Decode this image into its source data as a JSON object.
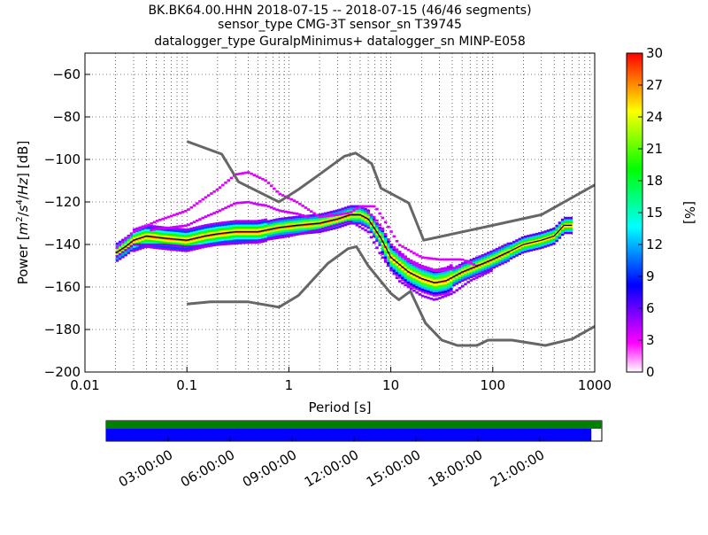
{
  "chart_data": {
    "type": "heatmap",
    "title_lines": [
      "BK.BK64.00.HHN   2018-07-15 -- 2018-07-15  (46/46 segments)",
      "sensor_type CMG-3T sensor_sn T39745",
      "datalogger_type GuralpMinimus+ datalogger_sn MINP-E058"
    ],
    "xlabel": "Period [s]",
    "ylabel_parts": [
      "Power [",
      "m",
      "2",
      "/",
      "s",
      "4",
      "/",
      "Hz",
      "] [dB]"
    ],
    "x_scale": "log",
    "xlim": [
      0.01,
      1000
    ],
    "ylim": [
      -200,
      -50
    ],
    "x_ticks": [
      {
        "value": 0.01,
        "label": "0.01"
      },
      {
        "value": 0.1,
        "label": "0.1"
      },
      {
        "value": 1,
        "label": "1"
      },
      {
        "value": 10,
        "label": "10"
      },
      {
        "value": 100,
        "label": "100"
      },
      {
        "value": 1000,
        "label": "1000"
      }
    ],
    "y_ticks": [
      {
        "value": -60,
        "label": "−60"
      },
      {
        "value": -80,
        "label": "−80"
      },
      {
        "value": -100,
        "label": "−100"
      },
      {
        "value": -120,
        "label": "−120"
      },
      {
        "value": -140,
        "label": "−140"
      },
      {
        "value": -160,
        "label": "−160"
      },
      {
        "value": -180,
        "label": "−180"
      },
      {
        "value": -200,
        "label": "−200"
      }
    ],
    "grid": "dotted",
    "colorbar": {
      "label": "[%]",
      "range": [
        0,
        30
      ],
      "ticks": [
        {
          "value": 0,
          "label": "0"
        },
        {
          "value": 3,
          "label": "3"
        },
        {
          "value": 6,
          "label": "6"
        },
        {
          "value": 9,
          "label": "9"
        },
        {
          "value": 12,
          "label": "12"
        },
        {
          "value": 15,
          "label": "15"
        },
        {
          "value": 18,
          "label": "18"
        },
        {
          "value": 21,
          "label": "21"
        },
        {
          "value": 24,
          "label": "24"
        },
        {
          "value": 27,
          "label": "27"
        },
        {
          "value": 30,
          "label": "30"
        }
      ],
      "colors": [
        "#ffffff",
        "#ff00ff",
        "#8000ff",
        "#0000ff",
        "#0080ff",
        "#00ffff",
        "#00ff80",
        "#00ff00",
        "#80ff00",
        "#ffff00",
        "#ff8000",
        "#ff0000"
      ]
    },
    "series": [
      {
        "role": "model-high",
        "color": "#666666",
        "points": [
          [
            0.1,
            -91.5
          ],
          [
            0.22,
            -97.5
          ],
          [
            0.32,
            -110.5
          ],
          [
            0.8,
            -120
          ],
          [
            1.25,
            -114
          ],
          [
            2.0,
            -107
          ],
          [
            3.5,
            -98.5
          ],
          [
            4.5,
            -97
          ],
          [
            6.5,
            -102
          ],
          [
            8.0,
            -113.5
          ],
          [
            15.0,
            -120.5
          ],
          [
            21.0,
            -138
          ],
          [
            100,
            -131
          ],
          [
            300,
            -126
          ],
          [
            1000,
            -112
          ]
        ]
      },
      {
        "role": "model-low",
        "color": "#666666",
        "points": [
          [
            0.1,
            -168
          ],
          [
            0.17,
            -167
          ],
          [
            0.4,
            -167
          ],
          [
            0.8,
            -169.5
          ],
          [
            1.24,
            -164
          ],
          [
            2.4,
            -149
          ],
          [
            3.8,
            -142
          ],
          [
            4.6,
            -141
          ],
          [
            6.0,
            -150
          ],
          [
            10,
            -163
          ],
          [
            12,
            -166
          ],
          [
            15.6,
            -162
          ],
          [
            21.9,
            -177
          ],
          [
            31.6,
            -185
          ],
          [
            45,
            -187.5
          ],
          [
            70,
            -187.5
          ],
          [
            90,
            -185
          ],
          [
            154,
            -185
          ],
          [
            328,
            -187.5
          ],
          [
            600,
            -184.5
          ],
          [
            1000,
            -178.5
          ]
        ]
      },
      {
        "role": "mean",
        "color": "#000000",
        "points": [
          [
            0.02,
            -144
          ],
          [
            0.025,
            -141
          ],
          [
            0.03,
            -138
          ],
          [
            0.04,
            -136
          ],
          [
            0.06,
            -137
          ],
          [
            0.1,
            -138
          ],
          [
            0.15,
            -136
          ],
          [
            0.2,
            -135
          ],
          [
            0.3,
            -134
          ],
          [
            0.5,
            -134
          ],
          [
            0.8,
            -132
          ],
          [
            1.2,
            -131
          ],
          [
            2,
            -130
          ],
          [
            3,
            -128
          ],
          [
            4,
            -126
          ],
          [
            5,
            -126
          ],
          [
            6,
            -128
          ],
          [
            8,
            -137
          ],
          [
            10,
            -146
          ],
          [
            15,
            -153
          ],
          [
            20,
            -156
          ],
          [
            27,
            -158
          ],
          [
            35,
            -157
          ],
          [
            50,
            -153
          ],
          [
            80,
            -149
          ],
          [
            100,
            -147
          ],
          [
            150,
            -143
          ],
          [
            200,
            -140
          ],
          [
            300,
            -138
          ],
          [
            400,
            -136
          ],
          [
            500,
            -131
          ],
          [
            600,
            -131
          ]
        ]
      },
      {
        "role": "envelope-upper",
        "color": "#d000ff",
        "points": [
          [
            0.02,
            -142
          ],
          [
            0.03,
            -134
          ],
          [
            0.05,
            -129
          ],
          [
            0.1,
            -124
          ],
          [
            0.15,
            -118
          ],
          [
            0.2,
            -114
          ],
          [
            0.3,
            -107
          ],
          [
            0.4,
            -106
          ],
          [
            0.6,
            -110
          ],
          [
            0.8,
            -116
          ],
          [
            1.2,
            -120
          ],
          [
            2,
            -127
          ],
          [
            3,
            -126
          ],
          [
            4,
            -125
          ],
          [
            5,
            -122
          ],
          [
            7,
            -122
          ],
          [
            9,
            -130
          ],
          [
            12,
            -140
          ],
          [
            20,
            -146
          ],
          [
            30,
            -147
          ],
          [
            50,
            -147
          ],
          [
            70,
            -150
          ]
        ]
      },
      {
        "role": "envelope-lower",
        "color": "#8a00ff",
        "points": [
          [
            0.02,
            -146
          ],
          [
            0.03,
            -140
          ],
          [
            0.06,
            -140
          ],
          [
            0.1,
            -141
          ],
          [
            0.2,
            -140
          ],
          [
            0.4,
            -139
          ],
          [
            1,
            -136
          ],
          [
            2,
            -133
          ],
          [
            4,
            -129
          ],
          [
            6,
            -134
          ],
          [
            8,
            -145
          ],
          [
            12,
            -157
          ],
          [
            20,
            -164
          ],
          [
            27,
            -166
          ],
          [
            40,
            -163
          ],
          [
            60,
            -157
          ],
          [
            100,
            -152
          ]
        ]
      }
    ]
  },
  "timeline": {
    "bar_top_color": "#008000",
    "bar_bottom_color": "#0000ff",
    "coverage_fraction": 0.979,
    "labels": [
      "03:00:00",
      "06:00:00",
      "09:00:00",
      "12:00:00",
      "15:00:00",
      "18:00:00",
      "21:00:00"
    ],
    "tick_hours": [
      3,
      6,
      9,
      12,
      15,
      18,
      21
    ]
  }
}
